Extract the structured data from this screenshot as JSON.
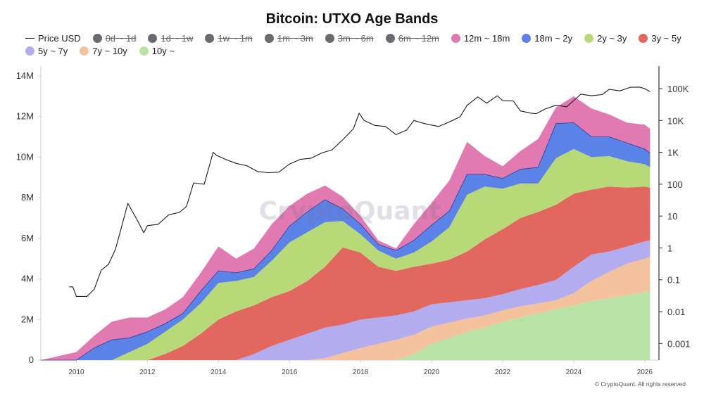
{
  "title": "Bitcoin: UTXO Age Bands",
  "copyright": "© CryptoQuant. All rights reserved",
  "watermark": "CryptoQuant",
  "legend": [
    {
      "name": "Price USD",
      "kind": "line",
      "color": "#222222",
      "active": true
    },
    {
      "name": "0d ~ 1d",
      "kind": "dot",
      "color": "#6b6b70",
      "active": false
    },
    {
      "name": "1d ~ 1w",
      "kind": "dot",
      "color": "#6b6b70",
      "active": false
    },
    {
      "name": "1w ~ 1m",
      "kind": "dot",
      "color": "#6b6b70",
      "active": false
    },
    {
      "name": "1m ~ 3m",
      "kind": "dot",
      "color": "#6b6b70",
      "active": false
    },
    {
      "name": "3m ~ 6m",
      "kind": "dot",
      "color": "#6b6b70",
      "active": false
    },
    {
      "name": "6m ~ 12m",
      "kind": "dot",
      "color": "#6b6b70",
      "active": false
    },
    {
      "name": "12m ~ 18m",
      "kind": "dot",
      "color": "#e07ab0",
      "active": true
    },
    {
      "name": "18m ~ 2y",
      "kind": "dot",
      "color": "#5b82e6",
      "active": true
    },
    {
      "name": "2y ~ 3y",
      "kind": "dot",
      "color": "#b8d977",
      "active": true
    },
    {
      "name": "3y ~ 5y",
      "kind": "dot",
      "color": "#e2675e",
      "active": true
    },
    {
      "name": "5y ~ 7y",
      "kind": "dot",
      "color": "#b3adf0",
      "active": true
    },
    {
      "name": "7y ~ 10y",
      "kind": "dot",
      "color": "#f4c39d",
      "active": true
    },
    {
      "name": "10y ~",
      "kind": "dot",
      "color": "#b9e3a6",
      "active": true
    }
  ],
  "chart_data": {
    "type": "area",
    "title": "Bitcoin: UTXO Age Bands",
    "stacked": true,
    "x_range": [
      2009,
      2026.4
    ],
    "x_ticks": [
      "2010",
      "2012",
      "2014",
      "2016",
      "2018",
      "2020",
      "2022",
      "2024",
      "2026"
    ],
    "y_left": {
      "range": [
        0,
        14000000
      ],
      "ticks": [
        "0",
        "2M",
        "4M",
        "6M",
        "8M",
        "10M",
        "12M",
        "14M"
      ]
    },
    "y_right": {
      "scale": "log",
      "range": [
        0.0003,
        250000
      ],
      "ticks": [
        "0.001",
        "0.01",
        "0.1",
        "1",
        "10",
        "100",
        "1K",
        "10K",
        "100K"
      ]
    },
    "x": [
      2009.0,
      2010.0,
      2010.5,
      2011.0,
      2011.5,
      2012.0,
      2012.5,
      2013.0,
      2013.5,
      2014.0,
      2014.5,
      2015.0,
      2015.5,
      2016.0,
      2016.5,
      2017.0,
      2017.5,
      2018.0,
      2018.5,
      2019.0,
      2019.5,
      2020.0,
      2020.5,
      2021.0,
      2021.5,
      2022.0,
      2022.5,
      2023.0,
      2023.5,
      2024.0,
      2024.5,
      2025.0,
      2025.5,
      2026.0,
      2026.15
    ],
    "series": [
      {
        "name": "10y ~",
        "color": "#b9e3a6",
        "values": [
          0,
          0,
          0,
          0,
          0,
          0,
          0,
          0,
          0,
          0,
          0,
          0,
          0,
          0,
          0,
          0,
          0,
          0,
          0,
          0,
          0.3,
          0.8,
          1.1,
          1.4,
          1.6,
          1.9,
          2.1,
          2.3,
          2.5,
          2.7,
          2.9,
          3.05,
          3.2,
          3.35,
          3.4
        ]
      },
      {
        "name": "7y ~ 10y",
        "color": "#f4c39d",
        "values": [
          0,
          0,
          0,
          0,
          0,
          0,
          0,
          0,
          0,
          0,
          0,
          0,
          0,
          0,
          0,
          0.1,
          0.35,
          0.6,
          0.8,
          1.0,
          0.95,
          0.85,
          0.75,
          0.65,
          0.6,
          0.55,
          0.55,
          0.5,
          0.45,
          0.6,
          1.0,
          1.3,
          1.55,
          1.65,
          1.7
        ]
      },
      {
        "name": "5y ~ 7y",
        "color": "#b3adf0",
        "values": [
          0,
          0,
          0,
          0,
          0,
          0,
          0,
          0,
          0,
          0,
          0,
          0.3,
          0.7,
          1.0,
          1.3,
          1.5,
          1.4,
          1.4,
          1.3,
          1.2,
          1.15,
          1.1,
          1.0,
          0.9,
          0.85,
          0.8,
          0.85,
          0.9,
          1.0,
          1.3,
          1.3,
          1.0,
          0.85,
          0.85,
          0.8
        ]
      },
      {
        "name": "3y ~ 5y",
        "color": "#e2675e",
        "values": [
          0,
          0,
          0,
          0,
          0,
          0,
          0.3,
          0.7,
          1.3,
          2.0,
          2.4,
          2.4,
          2.4,
          2.4,
          2.6,
          3.0,
          3.8,
          3.3,
          2.5,
          2.2,
          2.2,
          2.0,
          2.1,
          2.4,
          2.9,
          3.2,
          3.5,
          3.6,
          3.7,
          3.6,
          3.2,
          3.2,
          2.9,
          2.7,
          2.6
        ]
      },
      {
        "name": "2y ~ 3y",
        "color": "#b8d977",
        "values": [
          0,
          0,
          0,
          0,
          0.4,
          0.8,
          1.1,
          1.3,
          1.5,
          1.8,
          1.5,
          1.4,
          1.8,
          2.4,
          2.4,
          2.2,
          1.3,
          0.9,
          0.8,
          0.6,
          0.7,
          1.1,
          1.6,
          2.8,
          2.6,
          2.0,
          1.7,
          1.4,
          2.3,
          2.2,
          1.6,
          1.5,
          1.3,
          1.1,
          1.0
        ]
      },
      {
        "name": "18m ~ 2y",
        "color": "#5b82e6",
        "values": [
          0,
          0,
          0.6,
          1.0,
          0.7,
          0.6,
          0.4,
          0.3,
          0.6,
          0.6,
          0.4,
          0.4,
          0.5,
          0.8,
          1.0,
          1.1,
          0.6,
          0.5,
          0.3,
          0.4,
          0.6,
          0.8,
          0.8,
          1.0,
          0.6,
          0.5,
          0.7,
          0.8,
          1.7,
          1.3,
          1.0,
          0.95,
          0.9,
          0.75,
          0.7
        ]
      },
      {
        "name": "12m ~ 18m",
        "color": "#e07ab0",
        "values": [
          0,
          0.4,
          0.6,
          0.9,
          1.0,
          0.7,
          0.7,
          0.8,
          0.9,
          1.2,
          0.7,
          1.0,
          1.3,
          1.0,
          0.9,
          0.7,
          0.6,
          0.4,
          0.2,
          0.1,
          0.8,
          1.1,
          1.5,
          1.6,
          0.9,
          0.6,
          0.9,
          1.4,
          0.8,
          1.3,
          1.4,
          1.1,
          1.0,
          1.2,
          1.2
        ]
      }
    ],
    "value_unit": "M BTC (stacked)",
    "price_series": {
      "name": "Price USD",
      "x": [
        2009.8,
        2009.9,
        2010.0,
        2010.3,
        2010.5,
        2010.55,
        2010.7,
        2010.9,
        2011.1,
        2011.3,
        2011.45,
        2011.7,
        2011.9,
        2012.0,
        2012.3,
        2012.6,
        2012.9,
        2013.1,
        2013.3,
        2013.6,
        2013.85,
        2013.95,
        2014.2,
        2014.5,
        2014.8,
        2015.1,
        2015.4,
        2015.7,
        2016.0,
        2016.3,
        2016.6,
        2016.9,
        2017.2,
        2017.5,
        2017.8,
        2017.96,
        2018.1,
        2018.4,
        2018.7,
        2019.0,
        2019.3,
        2019.5,
        2019.8,
        2020.0,
        2020.2,
        2020.5,
        2020.8,
        2021.0,
        2021.3,
        2021.55,
        2021.85,
        2022.0,
        2022.3,
        2022.5,
        2022.8,
        2022.95,
        2023.2,
        2023.5,
        2023.8,
        2024.0,
        2024.2,
        2024.5,
        2024.8,
        2025.0,
        2025.3,
        2025.6,
        2025.85,
        2026.0,
        2026.15
      ],
      "values": [
        0.06,
        0.06,
        0.03,
        0.03,
        0.05,
        0.07,
        0.2,
        0.3,
        0.9,
        6,
        25,
        8,
        3,
        5,
        5.5,
        11,
        13,
        20,
        110,
        100,
        1000,
        800,
        600,
        450,
        380,
        250,
        230,
        240,
        430,
        600,
        650,
        950,
        1200,
        2500,
        5500,
        17000,
        10000,
        7000,
        6500,
        3600,
        5000,
        10000,
        8000,
        7200,
        6500,
        9000,
        13000,
        30000,
        55000,
        35000,
        60000,
        42000,
        41000,
        20000,
        17000,
        16500,
        23000,
        30000,
        27000,
        42000,
        67000,
        60000,
        65000,
        95000,
        85000,
        110000,
        112000,
        100000,
        80000
      ]
    }
  }
}
